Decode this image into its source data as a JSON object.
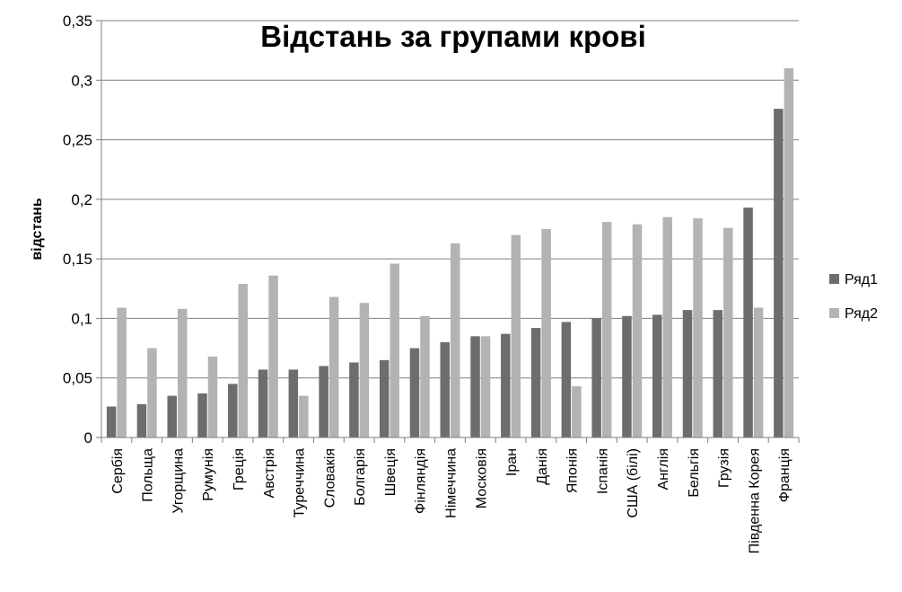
{
  "chart_data": {
    "type": "bar",
    "title": "Відстань за групами крові",
    "xlabel": "",
    "ylabel": "відстань",
    "ylim": [
      0,
      0.35
    ],
    "yticks": [
      0,
      0.05,
      0.1,
      0.15,
      0.2,
      0.25,
      0.3,
      0.35
    ],
    "yticklabels": [
      "0",
      "0,05",
      "0,1",
      "0,15",
      "0,2",
      "0,25",
      "0,3",
      "0,35"
    ],
    "grid": true,
    "legend_position": "right",
    "categories": [
      "Сербія",
      "Польща",
      "Угорщина",
      "Румунія",
      "Греція",
      "Австрія",
      "Туреччина",
      "Словакія",
      "Болгарія",
      "Швеція",
      "Фінляндія",
      "Німеччина",
      "Московія",
      "Іран",
      "Данія",
      "Японія",
      "Іспанія",
      "США (білі)",
      "Англія",
      "Бельгія",
      "Грузія",
      "Південна Корея",
      "Франція"
    ],
    "series": [
      {
        "name": "Ряд1",
        "color": "#6d6d6d",
        "values": [
          0.026,
          0.028,
          0.035,
          0.037,
          0.045,
          0.057,
          0.057,
          0.06,
          0.063,
          0.065,
          0.075,
          0.08,
          0.085,
          0.087,
          0.092,
          0.097,
          0.1,
          0.102,
          0.103,
          0.107,
          0.107,
          0.193,
          0.276
        ]
      },
      {
        "name": "Ряд2",
        "color": "#b3b3b3",
        "values": [
          0.109,
          0.075,
          0.108,
          0.068,
          0.129,
          0.136,
          0.035,
          0.118,
          0.113,
          0.146,
          0.102,
          0.163,
          0.085,
          0.17,
          0.175,
          0.043,
          0.181,
          0.179,
          0.185,
          0.184,
          0.176,
          0.109,
          0.31
        ]
      }
    ]
  }
}
